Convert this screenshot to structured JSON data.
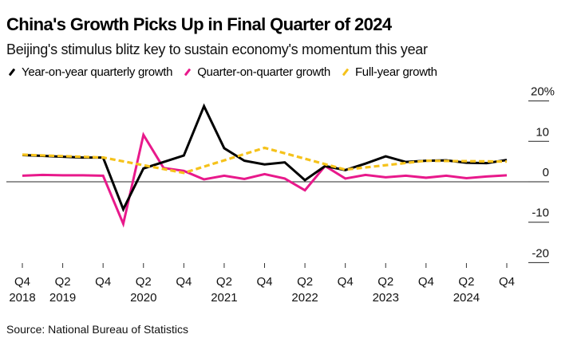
{
  "header": {
    "title": "China's Growth Picks Up in Final Quarter of 2024",
    "subtitle": "Beijing's stimulus blitz key to sustain economy's momentum this year"
  },
  "legend": [
    {
      "label": "Year-on-year quarterly growth",
      "color": "#000000"
    },
    {
      "label": "Quarter-on-quarter growth",
      "color": "#e8198b"
    },
    {
      "label": "Full-year growth",
      "color": "#f5c21b"
    }
  ],
  "source": "Source: National Bureau of Statistics",
  "chart_data": {
    "type": "line",
    "title": "China's Growth Picks Up in Final Quarter of 2024",
    "subtitle": "Beijing's stimulus blitz key to sustain economy's momentum this year",
    "xlabel": "",
    "ylabel": "",
    "y_unit": "%",
    "ylim": [
      -20,
      20
    ],
    "y_ticks": [
      20,
      10,
      0,
      -10,
      -20
    ],
    "y_tick_labels": [
      "20%",
      "10",
      "0",
      "-10",
      "-20"
    ],
    "y_axis_position": "right",
    "grid": false,
    "zero_line": true,
    "legend_position": "top-left",
    "x": [
      "Q4 2018",
      "Q1 2019",
      "Q2 2019",
      "Q3 2019",
      "Q4 2019",
      "Q1 2020",
      "Q2 2020",
      "Q3 2020",
      "Q4 2020",
      "Q1 2021",
      "Q2 2021",
      "Q3 2021",
      "Q4 2021",
      "Q1 2022",
      "Q2 2022",
      "Q3 2022",
      "Q4 2022",
      "Q1 2023",
      "Q2 2023",
      "Q3 2023",
      "Q4 2023",
      "Q1 2024",
      "Q2 2024",
      "Q3 2024",
      "Q4 2024"
    ],
    "x_ticks": [
      {
        "index": 0,
        "line1": "Q4",
        "line2": "2018"
      },
      {
        "index": 2,
        "line1": "Q2",
        "line2": "2019"
      },
      {
        "index": 4,
        "line1": "Q4",
        "line2": ""
      },
      {
        "index": 6,
        "line1": "Q2",
        "line2": "2020"
      },
      {
        "index": 8,
        "line1": "Q4",
        "line2": ""
      },
      {
        "index": 10,
        "line1": "Q2",
        "line2": "2021"
      },
      {
        "index": 12,
        "line1": "Q4",
        "line2": ""
      },
      {
        "index": 14,
        "line1": "Q2",
        "line2": "2022"
      },
      {
        "index": 16,
        "line1": "Q4",
        "line2": ""
      },
      {
        "index": 18,
        "line1": "Q2",
        "line2": "2023"
      },
      {
        "index": 20,
        "line1": "Q4",
        "line2": ""
      },
      {
        "index": 22,
        "line1": "Q2",
        "line2": "2024"
      },
      {
        "index": 24,
        "line1": "Q4",
        "line2": ""
      }
    ],
    "series": [
      {
        "name": "Year-on-year quarterly growth",
        "color": "#000000",
        "style": "solid",
        "values": [
          6.6,
          6.4,
          6.2,
          6.0,
          6.0,
          -6.8,
          3.3,
          4.9,
          6.5,
          18.7,
          8.3,
          5.2,
          4.3,
          4.8,
          0.4,
          3.9,
          2.9,
          4.5,
          6.3,
          4.9,
          5.2,
          5.3,
          4.7,
          4.6,
          5.4
        ]
      },
      {
        "name": "Quarter-on-quarter growth",
        "color": "#e8198b",
        "style": "solid",
        "values": [
          1.5,
          1.7,
          1.6,
          1.6,
          1.5,
          -10.4,
          11.6,
          3.4,
          2.7,
          0.6,
          1.5,
          0.7,
          1.9,
          0.8,
          -2.1,
          3.9,
          0.8,
          1.7,
          1.1,
          1.5,
          1.0,
          1.5,
          0.9,
          1.3,
          1.6
        ]
      },
      {
        "name": "Full-year growth",
        "color": "#f5c21b",
        "style": "dashed",
        "points": [
          {
            "x": "Q4 2018",
            "value": 6.7
          },
          {
            "x": "Q4 2019",
            "value": 6.0
          },
          {
            "x": "Q4 2020",
            "value": 2.2
          },
          {
            "x": "Q4 2021",
            "value": 8.4
          },
          {
            "x": "Q4 2022",
            "value": 3.0
          },
          {
            "x": "Q4 2023",
            "value": 5.2
          },
          {
            "x": "Q4 2024",
            "value": 5.0
          }
        ]
      }
    ]
  }
}
